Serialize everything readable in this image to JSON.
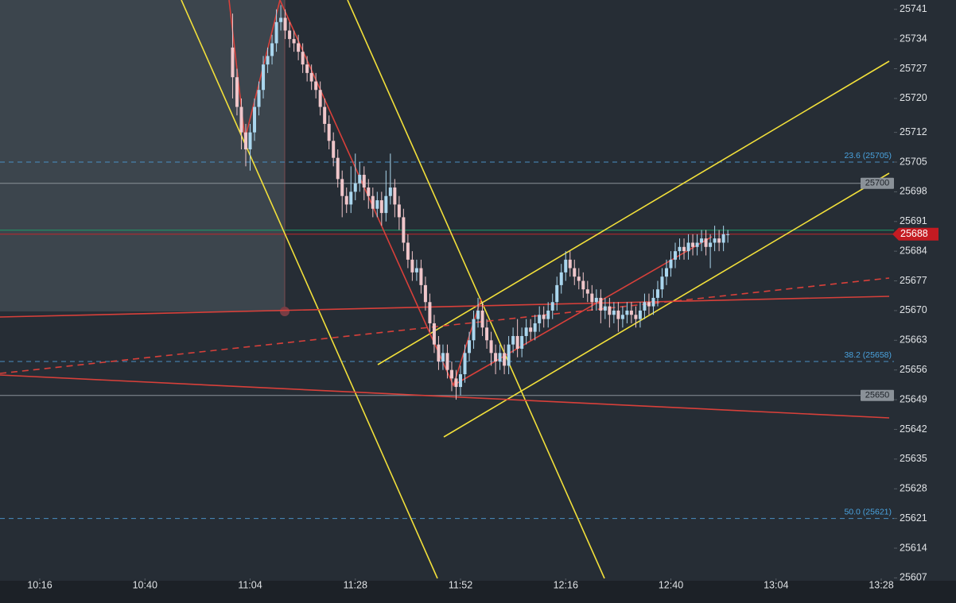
{
  "chart_data": {
    "type": "candlestick",
    "x": [
      "11:00",
      "11:01",
      "11:02",
      "11:03",
      "11:04",
      "11:05",
      "11:06",
      "11:07",
      "11:08",
      "11:09",
      "11:10",
      "11:11",
      "11:12",
      "11:13",
      "11:14",
      "11:15",
      "11:16",
      "11:17",
      "11:18",
      "11:19",
      "11:20",
      "11:21",
      "11:22",
      "11:23",
      "11:24",
      "11:25",
      "11:26",
      "11:27",
      "11:28",
      "11:29",
      "11:30",
      "11:31",
      "11:32",
      "11:33",
      "11:34",
      "11:35",
      "11:36",
      "11:37",
      "11:38",
      "11:39",
      "11:40",
      "11:41",
      "11:42",
      "11:43",
      "11:44",
      "11:45",
      "11:46",
      "11:47",
      "11:48",
      "11:49",
      "11:50",
      "11:51",
      "11:52",
      "11:53",
      "11:54",
      "11:55",
      "11:56",
      "11:57",
      "11:58",
      "11:59",
      "12:00",
      "12:01",
      "12:02",
      "12:03",
      "12:04",
      "12:05",
      "12:06",
      "12:07",
      "12:08",
      "12:09",
      "12:10",
      "12:11",
      "12:12",
      "12:13",
      "12:14",
      "12:15",
      "12:16",
      "12:17",
      "12:18",
      "12:19",
      "12:20",
      "12:21",
      "12:22",
      "12:23",
      "12:24",
      "12:25",
      "12:26",
      "12:27",
      "12:28",
      "12:29",
      "12:30",
      "12:31",
      "12:32",
      "12:33",
      "12:34",
      "12:35",
      "12:36",
      "12:37",
      "12:38",
      "12:39",
      "12:40",
      "12:41",
      "12:42",
      "12:43",
      "12:44",
      "12:45",
      "12:46",
      "12:47",
      "12:48",
      "12:49",
      "12:50",
      "12:51",
      "12:52",
      "12:53"
    ],
    "ohlc": [
      [
        25732,
        25740,
        25720,
        25725
      ],
      [
        25725,
        25727,
        25716,
        25718
      ],
      [
        25718,
        25720,
        25708,
        25712
      ],
      [
        25712,
        25714,
        25704,
        25708
      ],
      [
        25708,
        25714,
        25703,
        25712
      ],
      [
        25712,
        25720,
        25710,
        25718
      ],
      [
        25718,
        25724,
        25716,
        25722
      ],
      [
        25722,
        25730,
        25720,
        25728
      ],
      [
        25728,
        25732,
        25726,
        25730
      ],
      [
        25730,
        25735,
        25728,
        25733
      ],
      [
        25733,
        25741,
        25731,
        25738
      ],
      [
        25738,
        25742,
        25736,
        25739
      ],
      [
        25739,
        25741,
        25734,
        25736
      ],
      [
        25736,
        25738,
        25732,
        25734
      ],
      [
        25734,
        25736,
        25731,
        25733
      ],
      [
        25733,
        25735,
        25729,
        25731
      ],
      [
        25731,
        25733,
        25726,
        25728
      ],
      [
        25728,
        25730,
        25724,
        25726
      ],
      [
        25726,
        25728,
        25722,
        25724
      ],
      [
        25724,
        25726,
        25720,
        25722
      ],
      [
        25722,
        25724,
        25716,
        25718
      ],
      [
        25718,
        25720,
        25712,
        25714
      ],
      [
        25714,
        25716,
        25708,
        25710
      ],
      [
        25710,
        25712,
        25704,
        25706
      ],
      [
        25706,
        25708,
        25699,
        25701
      ],
      [
        25701,
        25703,
        25692,
        25697
      ],
      [
        25697,
        25699,
        25693,
        25695
      ],
      [
        25695,
        25704,
        25693,
        25698
      ],
      [
        25698,
        25707,
        25696,
        25700
      ],
      [
        25700,
        25705,
        25698,
        25702
      ],
      [
        25702,
        25704,
        25696,
        25699
      ],
      [
        25699,
        25701,
        25694,
        25697
      ],
      [
        25697,
        25699,
        25692,
        25694
      ],
      [
        25694,
        25698,
        25692,
        25696
      ],
      [
        25696,
        25698,
        25690,
        25693
      ],
      [
        25693,
        25703,
        25691,
        25697
      ],
      [
        25697,
        25707,
        25695,
        25699
      ],
      [
        25699,
        25701,
        25692,
        25695
      ],
      [
        25695,
        25697,
        25689,
        25692
      ],
      [
        25692,
        25694,
        25684,
        25686
      ],
      [
        25686,
        25688,
        25680,
        25682
      ],
      [
        25682,
        25684,
        25677,
        25679
      ],
      [
        25679,
        25682,
        25677,
        25680
      ],
      [
        25680,
        25682,
        25674,
        25676
      ],
      [
        25676,
        25678,
        25670,
        25672
      ],
      [
        25672,
        25674,
        25665,
        25667
      ],
      [
        25667,
        25669,
        25660,
        25662
      ],
      [
        25662,
        25664,
        25656,
        25658
      ],
      [
        25658,
        25662,
        25656,
        25660
      ],
      [
        25660,
        25662,
        25654,
        25656
      ],
      [
        25656,
        25658,
        25651,
        25654
      ],
      [
        25654,
        25656,
        25649,
        25652
      ],
      [
        25652,
        25657,
        25650,
        25655
      ],
      [
        25655,
        25662,
        25653,
        25660
      ],
      [
        25660,
        25665,
        25658,
        25663
      ],
      [
        25663,
        25670,
        25661,
        25668
      ],
      [
        25668,
        25673,
        25666,
        25670
      ],
      [
        25670,
        25672,
        25664,
        25666
      ],
      [
        25666,
        25668,
        25661,
        25663
      ],
      [
        25663,
        25665,
        25657,
        25660
      ],
      [
        25660,
        25662,
        25655,
        25658
      ],
      [
        25658,
        25662,
        25656,
        25660
      ],
      [
        25660,
        25662,
        25655,
        25657
      ],
      [
        25657,
        25664,
        25655,
        25662
      ],
      [
        25662,
        25666,
        25660,
        25664
      ],
      [
        25664,
        25668,
        25659,
        25661
      ],
      [
        25661,
        25666,
        25659,
        25664
      ],
      [
        25664,
        25668,
        25662,
        25666
      ],
      [
        25666,
        25668,
        25663,
        25665
      ],
      [
        25665,
        25669,
        25663,
        25667
      ],
      [
        25667,
        25671,
        25665,
        25669
      ],
      [
        25669,
        25671,
        25666,
        25668
      ],
      [
        25668,
        25672,
        25666,
        25670
      ],
      [
        25670,
        25674,
        25668,
        25672
      ],
      [
        25672,
        25678,
        25670,
        25676
      ],
      [
        25676,
        25681,
        25674,
        25679
      ],
      [
        25679,
        25684,
        25677,
        25682
      ],
      [
        25682,
        25684,
        25678,
        25680
      ],
      [
        25680,
        25682,
        25676,
        25678
      ],
      [
        25678,
        25680,
        25675,
        25677
      ],
      [
        25677,
        25679,
        25673,
        25675
      ],
      [
        25675,
        25677,
        25672,
        25674
      ],
      [
        25674,
        25676,
        25670,
        25672
      ],
      [
        25672,
        25675,
        25670,
        25673
      ],
      [
        25673,
        25675,
        25667,
        25670
      ],
      [
        25670,
        25673,
        25668,
        25671
      ],
      [
        25671,
        25673,
        25666,
        25669
      ],
      [
        25669,
        25672,
        25667,
        25670
      ],
      [
        25670,
        25672,
        25665,
        25668
      ],
      [
        25668,
        25671,
        25666,
        25669
      ],
      [
        25669,
        25672,
        25667,
        25670
      ],
      [
        25670,
        25672,
        25667,
        25669
      ],
      [
        25669,
        25671,
        25666,
        25668
      ],
      [
        25668,
        25672,
        25666,
        25670
      ],
      [
        25670,
        25674,
        25668,
        25672
      ],
      [
        25672,
        25674,
        25669,
        25671
      ],
      [
        25671,
        25675,
        25669,
        25673
      ],
      [
        25673,
        25677,
        25671,
        25675
      ],
      [
        25675,
        25680,
        25673,
        25678
      ],
      [
        25678,
        25682,
        25676,
        25680
      ],
      [
        25680,
        25684,
        25678,
        25682
      ],
      [
        25682,
        25686,
        25680,
        25684
      ],
      [
        25684,
        25687,
        25682,
        25685
      ],
      [
        25685,
        25687,
        25682,
        25684
      ],
      [
        25684,
        25688,
        25682,
        25686
      ],
      [
        25686,
        25688,
        25683,
        25685
      ],
      [
        25685,
        25688,
        25683,
        25686
      ],
      [
        25686,
        25689,
        25684,
        25687
      ],
      [
        25687,
        25689,
        25683,
        25685
      ],
      [
        25685,
        25688,
        25680,
        25686
      ],
      [
        25686,
        25690,
        25684,
        25687
      ],
      [
        25687,
        25689,
        25684,
        25686
      ],
      [
        25686,
        25690,
        25684,
        25688
      ],
      [
        25688,
        25689,
        25686,
        25688
      ]
    ],
    "up_color": "#aad6ee",
    "down_color": "#f0c6ca",
    "ylim": [
      25603.7,
      25743.2
    ],
    "yticks": [
      25741,
      25734,
      25727,
      25720,
      25712,
      25705,
      25698,
      25691,
      25684,
      25677,
      25670,
      25663,
      25656,
      25649,
      25642,
      25635,
      25628,
      25621,
      25614,
      25607
    ],
    "xticks": [
      "10:16",
      "10:40",
      "11:04",
      "11:28",
      "11:52",
      "12:16",
      "12:40",
      "13:04",
      "13:28"
    ],
    "horizontal_lines": [
      25700,
      25650
    ],
    "fib_levels": [
      {
        "value": 25705,
        "label": "23.6 (25705)"
      },
      {
        "value": 25658,
        "label": "38.2 (25658)"
      },
      {
        "value": 25621,
        "label": "50.0 (25621)"
      }
    ],
    "last_price": 25688
  }
}
